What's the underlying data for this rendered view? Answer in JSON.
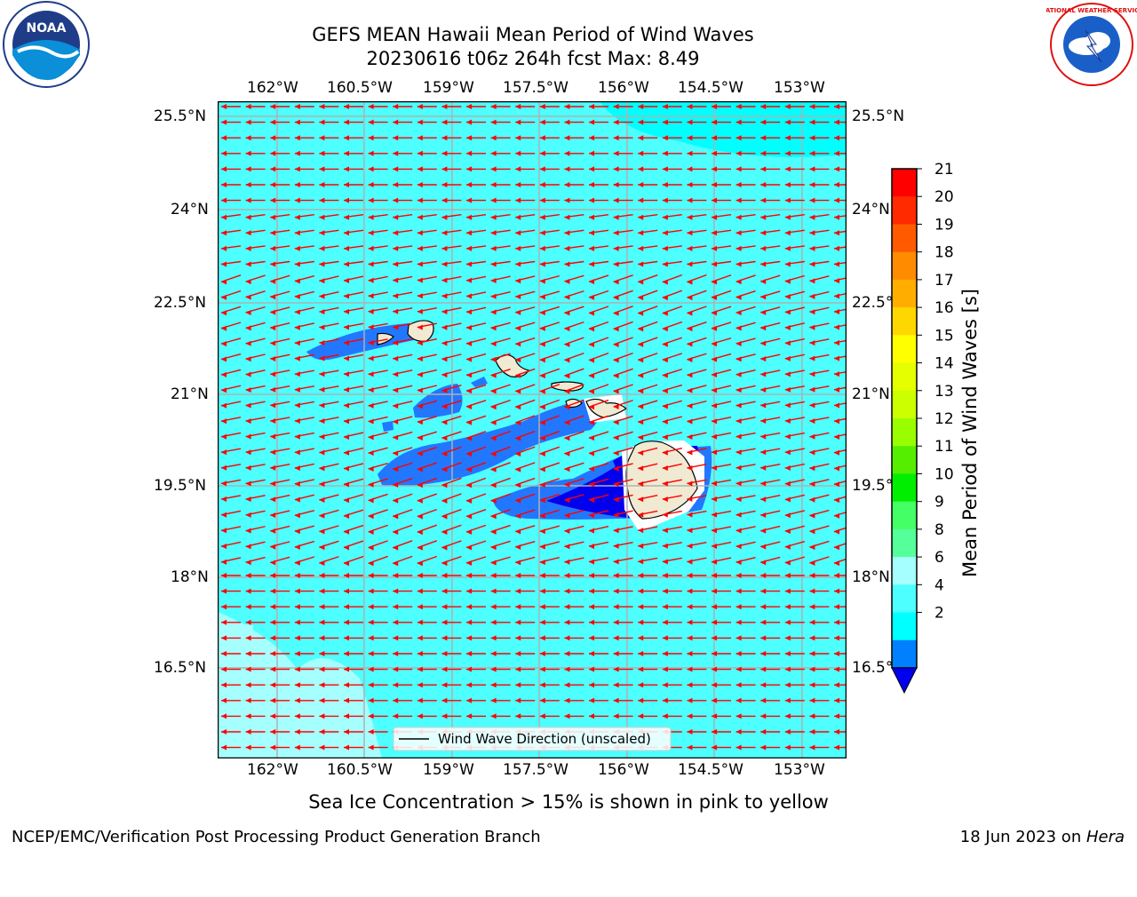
{
  "header": {
    "title_line1": "GEFS MEAN Hawaii Mean Period of Wind Waves",
    "title_line2": "20230616 t06z 264h fcst   Max: 8.49"
  },
  "logos": {
    "left_icon": "noaa-logo",
    "right_icon": "national-weather-service-logo",
    "noaa_text": "NOAA",
    "nws_text": "NATIONAL WEATHER SERVICE"
  },
  "map": {
    "longitude_ticks": [
      "162°W",
      "160.5°W",
      "159°W",
      "157.5°W",
      "156°W",
      "154.5°W",
      "153°W"
    ],
    "latitude_ticks": [
      "25.5°N",
      "24°N",
      "22.5°N",
      "21°N",
      "19.5°N",
      "18°N",
      "16.5°N"
    ],
    "legend_label": "Wind Wave Direction (unscaled)",
    "colors": {
      "ocean_main": "#4dffff",
      "ocean_light": "#a6ffff",
      "land": "#f0ead2",
      "arrows": "#ff0000",
      "grid": "#b0b0b0"
    }
  },
  "colorbar": {
    "label": "Mean Period of Wind Waves [s]",
    "tick_labels": [
      "21",
      "20",
      "19",
      "18",
      "17",
      "16",
      "15",
      "14",
      "13",
      "12",
      "11",
      "10",
      "9",
      "8",
      "6",
      "4",
      "2"
    ],
    "levels": [
      {
        "max": 21,
        "color": "#ff0000"
      },
      {
        "max": 20,
        "color": "#ff2a00"
      },
      {
        "max": 19,
        "color": "#ff5a00"
      },
      {
        "max": 18,
        "color": "#ff8c00"
      },
      {
        "max": 17,
        "color": "#ffae00"
      },
      {
        "max": 16,
        "color": "#ffd700"
      },
      {
        "max": 15,
        "color": "#ffff00"
      },
      {
        "max": 14,
        "color": "#e5ff00"
      },
      {
        "max": 13,
        "color": "#ccff00"
      },
      {
        "max": 12,
        "color": "#99ff00"
      },
      {
        "max": 11,
        "color": "#55ee00"
      },
      {
        "max": 10,
        "color": "#00ee00"
      },
      {
        "max": 9,
        "color": "#44ff66"
      },
      {
        "max": 8,
        "color": "#55ff99"
      },
      {
        "max": 6,
        "color": "#a6ffff"
      },
      {
        "max": 4,
        "color": "#4dffff"
      },
      {
        "max": 2,
        "color": "#00ffff"
      },
      {
        "max": 0,
        "color": "#0080ff"
      }
    ],
    "extend_color": "#0000ee"
  },
  "caption": "Sea Ice Concentration > 15% is shown in pink to yellow",
  "footer": {
    "left": "NCEP/EMC/Verification Post Processing Product Generation Branch",
    "right_prefix": "18 Jun 2023 on ",
    "right_host": "Hera"
  }
}
